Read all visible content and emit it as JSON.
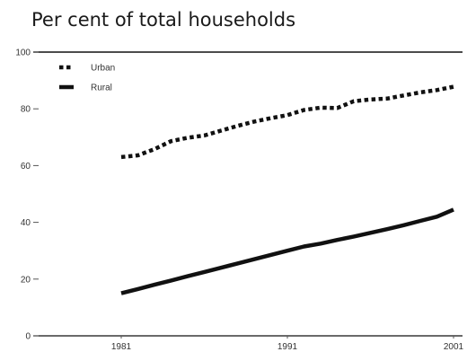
{
  "chart_data": {
    "type": "line",
    "title": "Per cent of total households",
    "xlabel": "",
    "ylabel": "",
    "xlim": [
      1981,
      2001
    ],
    "ylim": [
      0,
      100
    ],
    "x_ticks": [
      1981,
      1991,
      2001
    ],
    "y_ticks": [
      0,
      20,
      40,
      60,
      80,
      100
    ],
    "grid": false,
    "legend_position": "top-left",
    "x": [
      1981,
      1982,
      1983,
      1984,
      1985,
      1986,
      1987,
      1988,
      1989,
      1990,
      1991,
      1992,
      1993,
      1994,
      1995,
      1996,
      1997,
      1998,
      1999,
      2000,
      2001
    ],
    "series": [
      {
        "name": "Urban",
        "style": "dotted",
        "color": "#111111",
        "values": [
          63,
          63.6,
          65.8,
          68.6,
          69.8,
          70.6,
          72.3,
          74.0,
          75.5,
          76.7,
          77.8,
          79.6,
          80.4,
          80.3,
          82.7,
          83.3,
          83.6,
          84.7,
          85.8,
          86.6,
          87.8
        ]
      },
      {
        "name": "Rural",
        "style": "solid",
        "color": "#111111",
        "values": [
          15,
          16.5,
          18.0,
          19.5,
          21.0,
          22.5,
          24.0,
          25.5,
          27.0,
          28.5,
          30.0,
          31.5,
          32.5,
          33.8,
          35.0,
          36.3,
          37.6,
          39.0,
          40.5,
          42.0,
          44.5
        ]
      }
    ]
  }
}
